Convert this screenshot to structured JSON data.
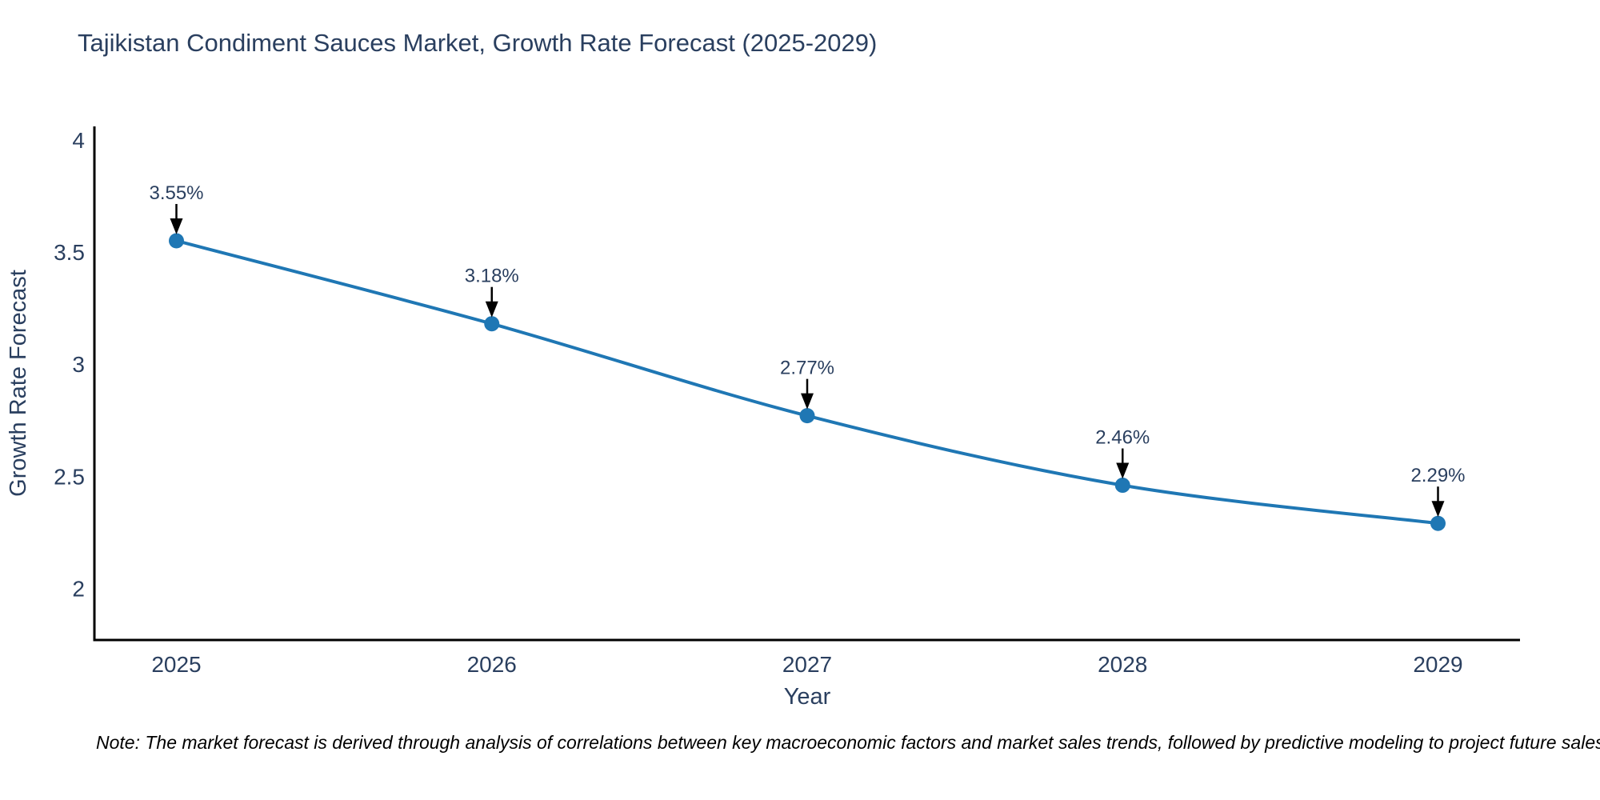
{
  "page": {
    "background": "#ffffff"
  },
  "note": "Note: The market forecast is derived through analysis of correlations between key macroeconomic factors and market sales trends, followed by predictive modeling to project future sales",
  "chart_data": {
    "type": "line",
    "title": "Tajikistan Condiment Sauces Market, Growth Rate Forecast (2025-2029)",
    "xlabel": "Year",
    "ylabel": "Growth Rate Forecast",
    "x": [
      2025,
      2026,
      2027,
      2028,
      2029
    ],
    "series": [
      {
        "name": "Growth Rate Forecast",
        "values": [
          3.55,
          3.18,
          2.77,
          2.46,
          2.29
        ]
      }
    ],
    "point_labels": [
      "3.55%",
      "3.18%",
      "2.77%",
      "2.46%",
      "2.29%"
    ],
    "xtick_labels": [
      "2025",
      "2026",
      "2027",
      "2028",
      "2029"
    ],
    "ytick_values": [
      2,
      2.5,
      3,
      3.5,
      4
    ],
    "ytick_labels": [
      "2",
      "2.5",
      "3",
      "3.5",
      "4"
    ],
    "xlim": [
      2024.74,
      2029.26
    ],
    "ylim": [
      1.77,
      4.06
    ],
    "grid": false,
    "legend": "none",
    "line_shape": "spline",
    "annotation_style": "arrow-down-to-point",
    "colors": {
      "line": "#1f77b4",
      "marker": "#1f77b4",
      "annotation_text": "#2a3f5f",
      "annotation_arrow": "#000000",
      "axis_line": "#000000",
      "tick_text": "#2a3f5f",
      "title_text": "#2a3f5f",
      "note_text": "#000000"
    }
  }
}
